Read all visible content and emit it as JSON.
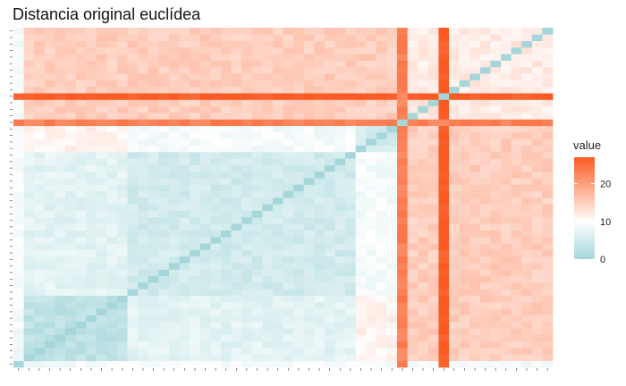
{
  "chart_data": {
    "type": "heatmap",
    "title": "Distancia original euclídea",
    "xlabel": "",
    "ylabel": "",
    "n": 52,
    "groups": {
      "left_block": [
        1,
        10
      ],
      "middle_block": [
        11,
        36
      ],
      "far_left_outlier": 0,
      "outlier_a": 37,
      "outlier_b": 41,
      "right_cluster": [
        42,
        51
      ]
    },
    "base_distances": {
      "left_within": 3,
      "middle_within": 5,
      "left_to_middle": 7,
      "right_within": 12,
      "right_to_main": 15,
      "outlier_a_to_rest": 23,
      "outlier_b_to_rest": 27,
      "outlier_a_to_outlier_b": 22,
      "far_left_to_rest": 9,
      "upper_rows_to_main": 14
    },
    "legend": {
      "title": "value",
      "ticks": [
        0,
        10,
        20
      ],
      "range": [
        0,
        27
      ],
      "colors": {
        "low": "#a4d6da",
        "mid": "#ffffff",
        "high": "#fb5a23"
      },
      "position": "right"
    },
    "grid": false
  }
}
